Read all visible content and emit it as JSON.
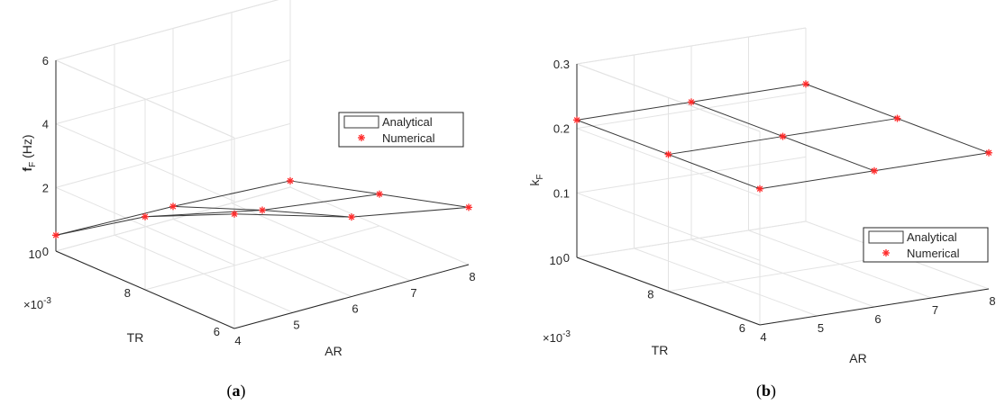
{
  "chart_data": [
    {
      "type": "3d-surface-mesh",
      "panel_label": "a",
      "xlabel": "AR",
      "ylabel": "TR",
      "zlabel": "f",
      "zlabel_sub": "F",
      "zlabel_unit": " (Hz)",
      "x_ticks": [
        "4",
        "5",
        "6",
        "7",
        "8"
      ],
      "y_ticks": [
        "6",
        "8",
        "10"
      ],
      "y_multiplier": "×10",
      "y_multiplier_exp": "-3",
      "z_ticks": [
        "0",
        "2",
        "4",
        "6"
      ],
      "xlim": [
        4,
        8
      ],
      "ylim": [
        6,
        10
      ],
      "zlim": [
        0,
        6
      ],
      "legend": {
        "position": "right",
        "entries": [
          "Analytical",
          "Numerical"
        ]
      },
      "grid": true,
      "AR": [
        4,
        6,
        8
      ],
      "TR": [
        6,
        8,
        10
      ],
      "values": [
        [
          3.6,
          2.5,
          1.8
        ],
        [
          2.3,
          1.5,
          1.0
        ],
        [
          0.5,
          0.4,
          0.2
        ]
      ],
      "numerical": [
        [
          3.6,
          2.5,
          1.8
        ],
        [
          2.3,
          1.5,
          1.0
        ],
        [
          0.5,
          0.4,
          0.2
        ]
      ]
    },
    {
      "type": "3d-surface-mesh",
      "panel_label": "b",
      "xlabel": "AR",
      "ylabel": "TR",
      "zlabel": "k",
      "zlabel_sub": "F",
      "zlabel_unit": "",
      "x_ticks": [
        "4",
        "5",
        "6",
        "7",
        "8"
      ],
      "y_ticks": [
        "6",
        "8",
        "10"
      ],
      "y_multiplier": "×10",
      "y_multiplier_exp": "-3",
      "z_ticks": [
        "0",
        "0.1",
        "0.2",
        "0.3"
      ],
      "xlim": [
        4,
        8
      ],
      "ylim": [
        6,
        10
      ],
      "zlim": [
        0,
        0.3
      ],
      "legend": {
        "position": "bottom-right",
        "entries": [
          "Analytical",
          "Numerical"
        ]
      },
      "grid": true,
      "AR": [
        4,
        6,
        8
      ],
      "TR": [
        6,
        8,
        10
      ],
      "values": [
        [
          0.211,
          0.211,
          0.211
        ],
        [
          0.212,
          0.212,
          0.212
        ],
        [
          0.213,
          0.213,
          0.213
        ]
      ],
      "numerical": [
        [
          0.211,
          0.211,
          0.211
        ],
        [
          0.212,
          0.212,
          0.212
        ],
        [
          0.213,
          0.213,
          0.213
        ]
      ]
    }
  ]
}
